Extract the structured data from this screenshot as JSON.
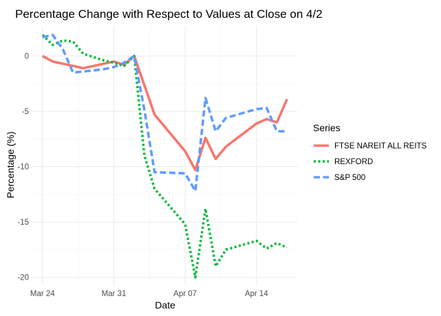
{
  "chart_data": {
    "type": "line",
    "title": "Percentage Change with Respect to Values at Close on 4/2",
    "xlabel": "Date",
    "ylabel": "Percentage (%)",
    "x_ticks": [
      {
        "label": "Mar 24",
        "date": "2020-03-24"
      },
      {
        "label": "Mar 31",
        "date": "2020-03-31"
      },
      {
        "label": "Apr 07",
        "date": "2020-04-07"
      },
      {
        "label": "Apr 14",
        "date": "2020-04-14"
      }
    ],
    "y_ticks": [
      0,
      -5,
      -10,
      -15,
      -20
    ],
    "xlim": [
      "2020-03-23",
      "2020-04-18"
    ],
    "ylim": [
      -20.7,
      2.7
    ],
    "grid": true,
    "legend": {
      "title": "Series",
      "position": "right"
    },
    "series": [
      {
        "name": "FTSE NAREIT ALL REITS",
        "color": "#F8766D",
        "dash": "solid",
        "points": [
          {
            "date": "2020-03-24",
            "value": 0.0
          },
          {
            "date": "2020-03-25",
            "value": -0.5
          },
          {
            "date": "2020-03-26",
            "value": -0.7
          },
          {
            "date": "2020-03-27",
            "value": -0.9
          },
          {
            "date": "2020-03-28",
            "value": -1.1
          },
          {
            "date": "2020-03-30",
            "value": -0.7
          },
          {
            "date": "2020-03-31",
            "value": -0.5
          },
          {
            "date": "2020-04-01",
            "value": -0.8
          },
          {
            "date": "2020-04-02",
            "value": 0.0
          },
          {
            "date": "2020-04-04",
            "value": -5.3
          },
          {
            "date": "2020-04-07",
            "value": -8.6
          },
          {
            "date": "2020-04-08",
            "value": -10.3
          },
          {
            "date": "2020-04-09",
            "value": -7.4
          },
          {
            "date": "2020-04-10",
            "value": -9.3
          },
          {
            "date": "2020-04-11",
            "value": -8.2
          },
          {
            "date": "2020-04-14",
            "value": -6.1
          },
          {
            "date": "2020-04-15",
            "value": -5.7
          },
          {
            "date": "2020-04-16",
            "value": -6.0
          },
          {
            "date": "2020-04-17",
            "value": -3.9
          }
        ]
      },
      {
        "name": "REXFORD",
        "color": "#00BA38",
        "dash": "dotted",
        "points": [
          {
            "date": "2020-03-24",
            "value": 1.9
          },
          {
            "date": "2020-03-25",
            "value": 1.0
          },
          {
            "date": "2020-03-26",
            "value": 1.4
          },
          {
            "date": "2020-03-27",
            "value": 1.3
          },
          {
            "date": "2020-03-28",
            "value": 0.2
          },
          {
            "date": "2020-03-30",
            "value": -0.4
          },
          {
            "date": "2020-03-31",
            "value": -0.6
          },
          {
            "date": "2020-04-01",
            "value": -0.9
          },
          {
            "date": "2020-04-02",
            "value": 0.0
          },
          {
            "date": "2020-04-03",
            "value": -9.0
          },
          {
            "date": "2020-04-04",
            "value": -12.0
          },
          {
            "date": "2020-04-07",
            "value": -15.2
          },
          {
            "date": "2020-04-08",
            "value": -20.0
          },
          {
            "date": "2020-04-09",
            "value": -13.8
          },
          {
            "date": "2020-04-10",
            "value": -19.0
          },
          {
            "date": "2020-04-11",
            "value": -17.5
          },
          {
            "date": "2020-04-14",
            "value": -16.7
          },
          {
            "date": "2020-04-15",
            "value": -17.4
          },
          {
            "date": "2020-04-16",
            "value": -16.9
          },
          {
            "date": "2020-04-17",
            "value": -17.3
          }
        ]
      },
      {
        "name": "S&P 500",
        "color": "#619CFF",
        "dash": "dashed",
        "points": [
          {
            "date": "2020-03-24",
            "value": 1.7
          },
          {
            "date": "2020-03-25",
            "value": 1.9
          },
          {
            "date": "2020-03-26",
            "value": 0.6
          },
          {
            "date": "2020-03-27",
            "value": -1.5
          },
          {
            "date": "2020-03-28",
            "value": -1.4
          },
          {
            "date": "2020-03-30",
            "value": -1.2
          },
          {
            "date": "2020-03-31",
            "value": -1.0
          },
          {
            "date": "2020-04-01",
            "value": -0.6
          },
          {
            "date": "2020-04-02",
            "value": 0.0
          },
          {
            "date": "2020-04-03",
            "value": -4.9
          },
          {
            "date": "2020-04-04",
            "value": -10.5
          },
          {
            "date": "2020-04-07",
            "value": -10.6
          },
          {
            "date": "2020-04-08",
            "value": -12.2
          },
          {
            "date": "2020-04-09",
            "value": -3.8
          },
          {
            "date": "2020-04-10",
            "value": -6.8
          },
          {
            "date": "2020-04-11",
            "value": -5.6
          },
          {
            "date": "2020-04-14",
            "value": -4.8
          },
          {
            "date": "2020-04-15",
            "value": -4.7
          },
          {
            "date": "2020-04-16",
            "value": -6.8
          },
          {
            "date": "2020-04-17",
            "value": -6.8
          }
        ]
      }
    ]
  }
}
